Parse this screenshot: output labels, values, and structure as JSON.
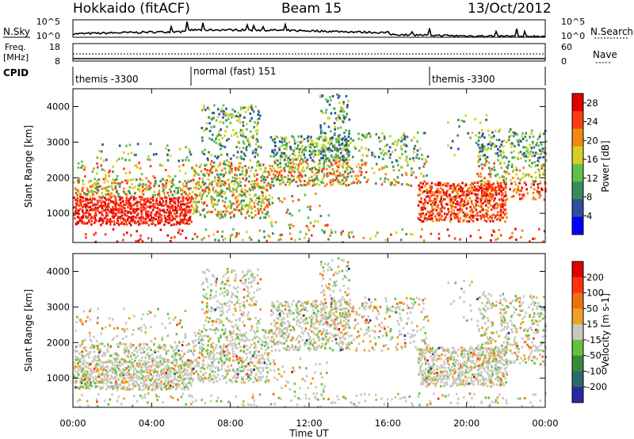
{
  "header": {
    "left": "Hokkaido (fitACF)",
    "center": "Beam 15",
    "right": "13/Oct/2012"
  },
  "noise": {
    "left_label": "N.Sky",
    "right_label": "N.Search",
    "left_ticks": [
      "10^5",
      "10^0"
    ],
    "right_ticks": [
      "10^5",
      "10^0"
    ]
  },
  "freq": {
    "left_label_top": "Freq.",
    "left_label_unit": "[MHz]",
    "left_ticks": [
      "18",
      "8"
    ],
    "right_label": "Nave",
    "right_ticks": [
      "60",
      "0"
    ]
  },
  "cpid": {
    "label": "CPID",
    "segments": [
      {
        "text": "themis -3300"
      },
      {
        "text": "normal (fast) 151"
      },
      {
        "text": "themis -3300"
      }
    ]
  },
  "time_axis": {
    "label": "Time UT",
    "ticks": [
      "00:00",
      "04:00",
      "08:00",
      "12:00",
      "16:00",
      "20:00",
      "00:00"
    ]
  },
  "chart_data": [
    {
      "type": "heatmap",
      "title": "",
      "xlabel": "Time UT",
      "ylabel": "Slant Range [km]",
      "x_range": [
        "00:00",
        "24:00"
      ],
      "ylim": [
        180,
        4500
      ],
      "y_ticks": [
        1000,
        2000,
        3000,
        4000
      ],
      "colorbar": {
        "label": "Power [dB]",
        "ticks": [
          4,
          8,
          12,
          16,
          20,
          24,
          28
        ],
        "range": [
          0,
          30
        ],
        "colors": [
          "#0000ff",
          "#2e4f9e",
          "#3a8a5a",
          "#5fc04a",
          "#d8d020",
          "#f08a10",
          "#ff3b10",
          "#e00000"
        ]
      }
    },
    {
      "type": "heatmap",
      "title": "",
      "xlabel": "Time UT",
      "ylabel": "Slant Range [km]",
      "x_range": [
        "00:00",
        "24:00"
      ],
      "ylim": [
        180,
        4500
      ],
      "y_ticks": [
        1000,
        2000,
        3000,
        4000
      ],
      "colorbar": {
        "label": "Velocity [m s-1]",
        "ticks": [
          200,
          100,
          50,
          15,
          -15,
          -50,
          -100,
          -200
        ],
        "colors": [
          "#2a2aa0",
          "#2a6a6a",
          "#3a8a3a",
          "#66c040",
          "#c8c8c0",
          "#f0a020",
          "#f07010",
          "#ff3010",
          "#e00000"
        ]
      }
    }
  ]
}
